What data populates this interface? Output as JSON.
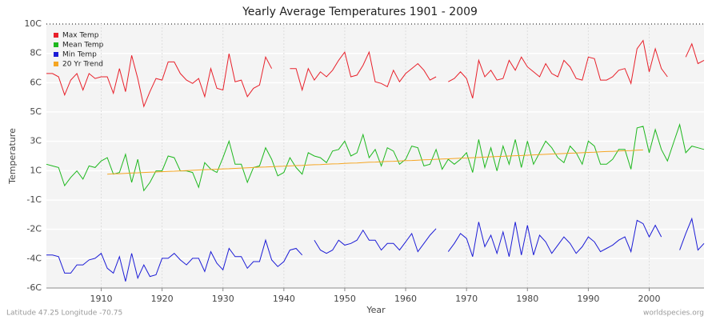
{
  "chart_data": {
    "type": "line",
    "title": "Yearly Average Temperatures 1901 - 2009",
    "x_label": "Year",
    "y_label": "Temperature",
    "footer_left": "Latitude 47.25 Longitude -70.75",
    "footer_right": "worldspecies.org",
    "x": [
      1901,
      1902,
      1903,
      1904,
      1905,
      1906,
      1907,
      1908,
      1909,
      1910,
      1911,
      1912,
      1913,
      1914,
      1915,
      1916,
      1917,
      1918,
      1919,
      1920,
      1921,
      1922,
      1923,
      1924,
      1925,
      1926,
      1927,
      1928,
      1929,
      1930,
      1931,
      1932,
      1933,
      1934,
      1935,
      1936,
      1937,
      1938,
      1939,
      1940,
      1941,
      1942,
      1943,
      1944,
      1945,
      1946,
      1947,
      1948,
      1949,
      1950,
      1951,
      1952,
      1953,
      1954,
      1955,
      1956,
      1957,
      1958,
      1959,
      1960,
      1961,
      1962,
      1963,
      1964,
      1965,
      1966,
      1967,
      1968,
      1969,
      1970,
      1971,
      1972,
      1973,
      1974,
      1975,
      1976,
      1977,
      1978,
      1979,
      1980,
      1981,
      1982,
      1983,
      1984,
      1985,
      1986,
      1987,
      1988,
      1989,
      1990,
      1991,
      1992,
      1993,
      1994,
      1995,
      1996,
      1997,
      1998,
      1999,
      2000,
      2001,
      2002,
      2003,
      2004,
      2005,
      2006,
      2007,
      2008,
      2009
    ],
    "xlim": [
      1901,
      2009
    ],
    "xticks": [
      1910,
      1920,
      1930,
      1940,
      1950,
      1960,
      1970,
      1980,
      1990,
      2000
    ],
    "ylim": [
      -6,
      10
    ],
    "yticks": [
      {
        "value": -6,
        "label": "-6C"
      },
      {
        "value": -4.22,
        "label": "-4C"
      },
      {
        "value": -2.44,
        "label": "-2C"
      },
      {
        "value": -0.67,
        "label": "-1C"
      },
      {
        "value": 1.11,
        "label": "1C"
      },
      {
        "value": 2.89,
        "label": "3C"
      },
      {
        "value": 4.67,
        "label": "5C"
      },
      {
        "value": 6.44,
        "label": "6C"
      },
      {
        "value": 8.22,
        "label": "8C"
      },
      {
        "value": 10,
        "label": "10C"
      }
    ],
    "grid": true,
    "legend": "top-left",
    "series": [
      {
        "name": "Max Temp",
        "color": "#e8202a",
        "values": [
          7.0,
          7.0,
          6.8,
          5.7,
          6.6,
          7.0,
          6.0,
          7.0,
          6.7,
          6.8,
          6.8,
          5.8,
          7.3,
          5.9,
          8.1,
          6.7,
          5.0,
          5.9,
          6.7,
          6.6,
          7.7,
          7.7,
          7.0,
          6.6,
          6.4,
          6.7,
          5.6,
          7.3,
          6.1,
          6.0,
          8.2,
          6.5,
          6.6,
          5.6,
          6.1,
          6.3,
          8.0,
          7.3,
          null,
          null,
          7.3,
          7.3,
          6.0,
          7.3,
          6.6,
          7.1,
          6.8,
          7.2,
          7.8,
          8.3,
          6.8,
          6.9,
          7.5,
          8.3,
          6.5,
          6.4,
          6.2,
          7.2,
          6.5,
          7.0,
          7.3,
          7.6,
          7.2,
          6.6,
          6.8,
          null,
          6.5,
          6.7,
          7.1,
          6.7,
          5.5,
          7.8,
          6.8,
          7.2,
          6.6,
          6.7,
          7.8,
          7.2,
          8.0,
          7.4,
          7.1,
          6.8,
          7.6,
          7.0,
          6.8,
          7.8,
          7.4,
          6.7,
          6.6,
          8.0,
          7.9,
          6.6,
          6.6,
          6.8,
          7.2,
          7.3,
          6.4,
          8.5,
          9.0,
          7.1,
          8.5,
          7.3,
          6.8,
          null,
          null,
          8.0,
          8.8,
          7.6,
          7.8
        ]
      },
      {
        "name": "Mean Temp",
        "color": "#1fb81f",
        "values": [
          1.5,
          1.4,
          1.3,
          0.2,
          0.7,
          1.1,
          0.6,
          1.4,
          1.3,
          1.7,
          1.9,
          0.9,
          1.0,
          2.1,
          0.4,
          1.8,
          -0.1,
          0.4,
          1.1,
          1.1,
          2.0,
          1.9,
          1.1,
          1.1,
          1.0,
          0.1,
          1.6,
          1.2,
          1.0,
          1.9,
          2.9,
          1.5,
          1.5,
          0.4,
          1.3,
          1.4,
          2.5,
          1.8,
          0.8,
          1.0,
          1.9,
          1.3,
          0.9,
          2.2,
          2.0,
          1.9,
          1.6,
          2.3,
          2.4,
          2.9,
          2.0,
          2.2,
          3.3,
          1.9,
          2.4,
          1.4,
          2.5,
          2.3,
          1.5,
          1.8,
          2.6,
          2.5,
          1.4,
          1.5,
          2.4,
          1.2,
          1.8,
          1.5,
          1.8,
          2.2,
          1.0,
          3.0,
          1.3,
          2.5,
          1.1,
          2.6,
          1.5,
          3.0,
          1.3,
          2.9,
          1.5,
          2.2,
          2.9,
          2.5,
          1.9,
          1.6,
          2.6,
          2.2,
          1.5,
          2.9,
          2.6,
          1.5,
          1.5,
          1.8,
          2.4,
          2.4,
          1.2,
          3.7,
          3.8,
          2.2,
          3.6,
          2.4,
          1.7,
          2.8,
          3.9,
          2.2,
          2.6,
          2.5,
          2.4
        ]
      },
      {
        "name": "Min Temp",
        "color": "#1c1cd6",
        "values": [
          -4.0,
          -4.0,
          -4.1,
          -5.1,
          -5.1,
          -4.6,
          -4.6,
          -4.3,
          -4.2,
          -3.9,
          -4.8,
          -5.1,
          -4.1,
          -5.6,
          -3.9,
          -5.4,
          -4.6,
          -5.3,
          -5.2,
          -4.2,
          -4.2,
          -3.9,
          -4.3,
          -4.6,
          -4.2,
          -4.2,
          -5.0,
          -3.8,
          -4.5,
          -4.9,
          -3.6,
          -4.1,
          -4.1,
          -4.8,
          -4.4,
          -4.4,
          -3.1,
          -4.3,
          -4.7,
          -4.4,
          -3.7,
          -3.6,
          -4.0,
          null,
          -3.1,
          -3.7,
          -3.9,
          -3.7,
          -3.1,
          -3.4,
          -3.3,
          -3.1,
          -2.5,
          -3.1,
          -3.1,
          -3.7,
          -3.3,
          -3.3,
          -3.7,
          -3.2,
          -2.7,
          -3.8,
          -3.3,
          -2.8,
          -2.4,
          null,
          -3.8,
          -3.3,
          -2.7,
          -3.0,
          -4.1,
          -2.0,
          -3.5,
          -2.8,
          -3.9,
          -2.6,
          -4.1,
          -2.0,
          -4.0,
          -2.2,
          -4.0,
          -2.8,
          -3.2,
          -3.9,
          -3.4,
          -2.9,
          -3.3,
          -3.9,
          -3.5,
          -2.9,
          -3.2,
          -3.8,
          -3.6,
          -3.4,
          -3.1,
          -2.9,
          -3.8,
          -1.9,
          -2.1,
          -2.9,
          -2.2,
          -2.9,
          null,
          null,
          -3.7,
          -2.7,
          -1.8,
          -3.7,
          -3.3
        ]
      },
      {
        "name": "20 Yr Trend",
        "color": "#f5a623",
        "values": [
          null,
          null,
          null,
          null,
          null,
          null,
          null,
          null,
          null,
          null,
          0.9,
          0.92,
          0.93,
          0.95,
          0.97,
          0.98,
          1.0,
          1.02,
          1.03,
          1.05,
          1.07,
          1.08,
          1.1,
          1.12,
          1.13,
          1.15,
          1.17,
          1.18,
          1.2,
          1.22,
          1.23,
          1.25,
          1.27,
          1.28,
          1.3,
          1.32,
          1.33,
          1.35,
          1.37,
          1.38,
          1.4,
          1.42,
          1.43,
          1.45,
          1.47,
          1.48,
          1.5,
          1.52,
          1.53,
          1.55,
          1.57,
          1.58,
          1.6,
          1.62,
          1.63,
          1.65,
          1.67,
          1.68,
          1.7,
          1.72,
          1.73,
          1.75,
          1.77,
          1.78,
          1.8,
          1.82,
          1.83,
          1.85,
          1.87,
          1.88,
          1.9,
          1.92,
          1.93,
          1.95,
          1.97,
          1.98,
          2.0,
          2.02,
          2.03,
          2.05,
          2.07,
          2.08,
          2.1,
          2.12,
          2.13,
          2.15,
          2.17,
          2.18,
          2.2,
          2.22,
          2.23,
          2.25,
          2.27,
          2.28,
          2.3,
          2.32,
          2.33,
          2.35,
          2.37,
          null,
          null,
          null,
          null,
          null,
          null,
          null,
          null,
          null,
          null
        ]
      }
    ]
  }
}
